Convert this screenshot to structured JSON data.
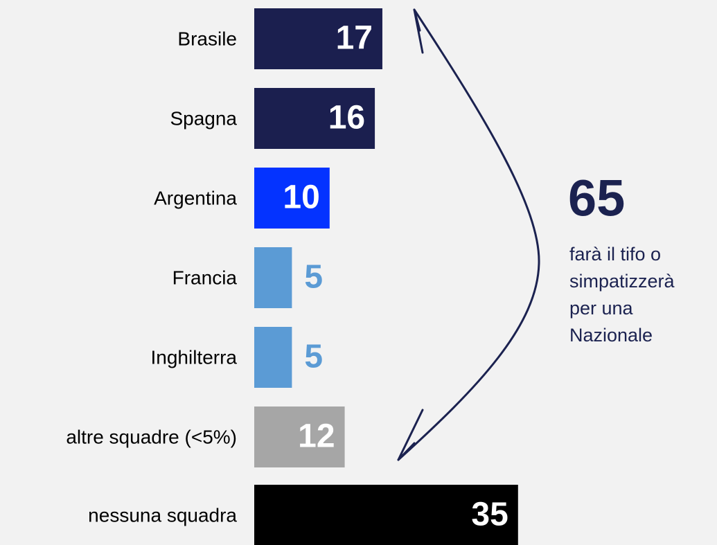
{
  "chart_data": {
    "type": "bar",
    "orientation": "horizontal",
    "categories": [
      "Brasile",
      "Spagna",
      "Argentina",
      "Francia",
      "Inghilterra",
      "altre squadre (<5%)",
      "nessuna squadra"
    ],
    "values": [
      17,
      16,
      10,
      5,
      5,
      12,
      35
    ],
    "colors": [
      "#1b1f4f",
      "#1b1f4f",
      "#0433ff",
      "#5b9bd5",
      "#5b9bd5",
      "#a6a6a6",
      "#000000"
    ],
    "annotation": {
      "value": 65,
      "lines": [
        "farà il tifo o",
        "simpatizzerà",
        "per una",
        "Nazionale"
      ],
      "color": "#1b2250"
    }
  }
}
